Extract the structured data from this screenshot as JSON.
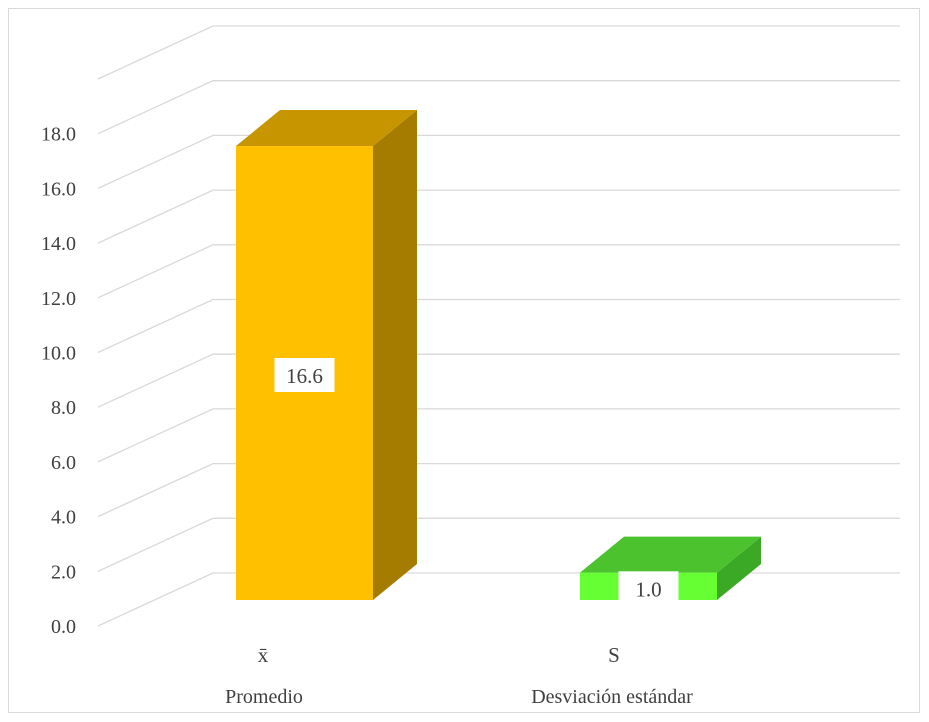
{
  "chart_data": {
    "type": "bar",
    "categories": [
      "Promedio",
      "Desviación estándar"
    ],
    "symbols": [
      "x̄",
      "S"
    ],
    "series": [
      {
        "values": [
          16.6,
          1.0
        ],
        "colors": [
          "#FFC000",
          "#66FF33"
        ]
      }
    ],
    "data_labels": [
      "16.6",
      "1.0"
    ],
    "y_ticks": [
      "0.0",
      "2.0",
      "4.0",
      "6.0",
      "8.0",
      "10.0",
      "12.0",
      "14.0",
      "16.0",
      "18.0"
    ],
    "ylim": [
      0,
      20
    ],
    "grid": true,
    "legend": "none",
    "style": "3d-column"
  }
}
